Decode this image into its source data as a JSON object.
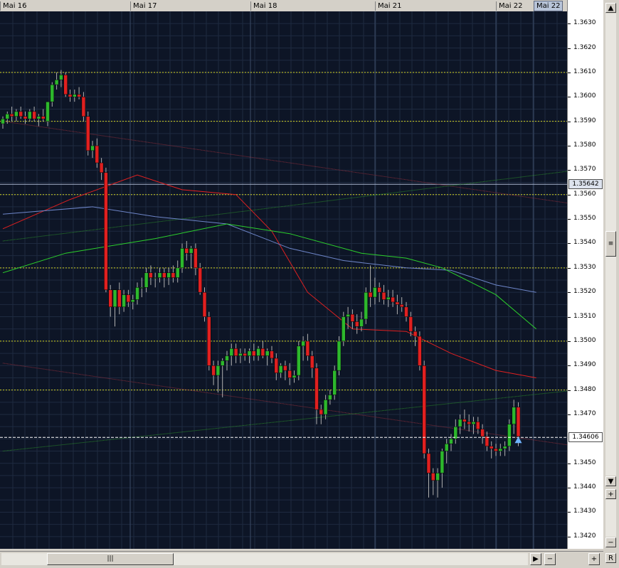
{
  "window": {
    "date_tabs": [
      "Mai 16",
      "Mai 17",
      "Mai 18",
      "Mai 21",
      "Mai 22",
      "Mai 22"
    ]
  },
  "colors": {
    "background": "#0d1526",
    "grid": "#1e2a40",
    "bull": "#2db82d",
    "bear": "#e02020",
    "ma_red": "#e02020",
    "ma_blue": "#6d85c8",
    "ma_green": "#2cd02c",
    "channel_red": "#8b2d3a",
    "channel_green": "#2a8a2a",
    "level": "#d4d420",
    "current_price": "#ffffff",
    "ref_price_line": "#a8b4cc"
  },
  "chart_data": {
    "type": "candlestick",
    "instrument": "",
    "x_labels": [
      "Mai 16",
      "Mai 17",
      "Mai 18",
      "Mai 21",
      "Mai 22",
      "Mai 22"
    ],
    "ylim": [
      1.3415,
      1.3635
    ],
    "y_ticks": [
      "1.3630",
      "1.3620",
      "1.3610",
      "1.3600",
      "1.3590",
      "1.3580",
      "1.3570",
      "1.3560",
      "1.3550",
      "1.3540",
      "1.3530",
      "1.3520",
      "1.3510",
      "1.3500",
      "1.3490",
      "1.3480",
      "1.3470",
      "1.3450",
      "1.3440",
      "1.3430",
      "1.3420"
    ],
    "current_price": "1.34606",
    "ref_price": "1.35642",
    "horizontal_levels": [
      1.361,
      1.359,
      1.356,
      1.353,
      1.35,
      1.348
    ],
    "candles": [
      [
        1.3589,
        1.3592,
        1.3587,
        1.3591
      ],
      [
        1.3591,
        1.3594,
        1.3589,
        1.3593
      ],
      [
        1.3593,
        1.3596,
        1.359,
        1.3592
      ],
      [
        1.3592,
        1.3595,
        1.359,
        1.3594
      ],
      [
        1.3594,
        1.3596,
        1.3591,
        1.3592
      ],
      [
        1.3592,
        1.3594,
        1.3589,
        1.3591
      ],
      [
        1.3591,
        1.3595,
        1.359,
        1.3594
      ],
      [
        1.3594,
        1.3596,
        1.359,
        1.3591
      ],
      [
        1.3591,
        1.3593,
        1.3588,
        1.3592
      ],
      [
        1.3592,
        1.3595,
        1.359,
        1.3591
      ],
      [
        1.359,
        1.3596,
        1.3588,
        1.3598
      ],
      [
        1.3598,
        1.3606,
        1.3596,
        1.3605
      ],
      [
        1.3605,
        1.361,
        1.3603,
        1.3607
      ],
      [
        1.3607,
        1.3611,
        1.3604,
        1.3609
      ],
      [
        1.3609,
        1.361,
        1.36,
        1.3601
      ],
      [
        1.3601,
        1.3603,
        1.3598,
        1.36
      ],
      [
        1.36,
        1.3603,
        1.3598,
        1.3601
      ],
      [
        1.3601,
        1.3604,
        1.3599,
        1.36
      ],
      [
        1.36,
        1.3602,
        1.359,
        1.3592
      ],
      [
        1.3592,
        1.3594,
        1.3576,
        1.3578
      ],
      [
        1.3578,
        1.3582,
        1.3575,
        1.358
      ],
      [
        1.358,
        1.3583,
        1.3571,
        1.3573
      ],
      [
        1.3573,
        1.3575,
        1.3566,
        1.3569
      ],
      [
        1.3569,
        1.3571,
        1.352,
        1.3521
      ],
      [
        1.3521,
        1.3523,
        1.351,
        1.3514
      ],
      [
        1.3514,
        1.352,
        1.3506,
        1.3521
      ],
      [
        1.3521,
        1.3524,
        1.3511,
        1.3514
      ],
      [
        1.3514,
        1.3521,
        1.3512,
        1.3519
      ],
      [
        1.3519,
        1.3521,
        1.3514,
        1.3516
      ],
      [
        1.3516,
        1.3519,
        1.3513,
        1.3517
      ],
      [
        1.3517,
        1.3524,
        1.3515,
        1.3522
      ],
      [
        1.3522,
        1.3526,
        1.3518,
        1.3522
      ],
      [
        1.3522,
        1.353,
        1.352,
        1.3528
      ],
      [
        1.3528,
        1.3531,
        1.3523,
        1.3526
      ],
      [
        1.3526,
        1.3528,
        1.3522,
        1.3526
      ],
      [
        1.3526,
        1.353,
        1.3524,
        1.3528
      ],
      [
        1.3528,
        1.353,
        1.3522,
        1.3526
      ],
      [
        1.3526,
        1.353,
        1.3523,
        1.3528
      ],
      [
        1.3528,
        1.3531,
        1.3524,
        1.3526
      ],
      [
        1.3526,
        1.3533,
        1.3524,
        1.353
      ],
      [
        1.353,
        1.354,
        1.3528,
        1.3538
      ],
      [
        1.3538,
        1.3541,
        1.3533,
        1.3536
      ],
      [
        1.3536,
        1.3539,
        1.353,
        1.3538
      ],
      [
        1.3538,
        1.354,
        1.3527,
        1.353
      ],
      [
        1.353,
        1.3532,
        1.3519,
        1.352
      ],
      [
        1.352,
        1.3522,
        1.3508,
        1.351
      ],
      [
        1.351,
        1.3512,
        1.3488,
        1.349
      ],
      [
        1.349,
        1.3492,
        1.3482,
        1.3486
      ],
      [
        1.3486,
        1.3492,
        1.3479,
        1.349
      ],
      [
        1.349,
        1.3493,
        1.3477,
        1.3492
      ],
      [
        1.3492,
        1.3496,
        1.3488,
        1.3494
      ],
      [
        1.3494,
        1.3499,
        1.349,
        1.3497
      ],
      [
        1.3497,
        1.3499,
        1.3491,
        1.3494
      ],
      [
        1.3494,
        1.3497,
        1.3491,
        1.3495
      ],
      [
        1.3495,
        1.3497,
        1.3492,
        1.3494
      ],
      [
        1.3494,
        1.3497,
        1.3491,
        1.3496
      ],
      [
        1.3496,
        1.3499,
        1.3492,
        1.3494
      ],
      [
        1.3494,
        1.3498,
        1.3492,
        1.3497
      ],
      [
        1.3497,
        1.35,
        1.3493,
        1.3494
      ],
      [
        1.3494,
        1.3497,
        1.349,
        1.3496
      ],
      [
        1.3496,
        1.3498,
        1.3491,
        1.3493
      ],
      [
        1.3493,
        1.3495,
        1.3484,
        1.3487
      ],
      [
        1.3487,
        1.3491,
        1.3485,
        1.349
      ],
      [
        1.349,
        1.3492,
        1.3484,
        1.3488
      ],
      [
        1.3488,
        1.3491,
        1.3482,
        1.3485
      ],
      [
        1.3485,
        1.3488,
        1.3483,
        1.3486
      ],
      [
        1.3486,
        1.35,
        1.3484,
        1.3498
      ],
      [
        1.3498,
        1.3502,
        1.3492,
        1.35
      ],
      [
        1.35,
        1.3503,
        1.3492,
        1.3494
      ],
      [
        1.3494,
        1.3496,
        1.3485,
        1.3489
      ],
      [
        1.3489,
        1.3491,
        1.3466,
        1.3472
      ],
      [
        1.3472,
        1.3474,
        1.3466,
        1.347
      ],
      [
        1.347,
        1.3478,
        1.3468,
        1.3476
      ],
      [
        1.3476,
        1.348,
        1.3474,
        1.3478
      ],
      [
        1.3478,
        1.349,
        1.3476,
        1.3488
      ],
      [
        1.3488,
        1.3502,
        1.3486,
        1.35
      ],
      [
        1.35,
        1.3512,
        1.3498,
        1.351
      ],
      [
        1.351,
        1.3514,
        1.3505,
        1.3511
      ],
      [
        1.3511,
        1.3513,
        1.3505,
        1.3508
      ],
      [
        1.3508,
        1.3511,
        1.3503,
        1.3506
      ],
      [
        1.3506,
        1.3512,
        1.3504,
        1.3509
      ],
      [
        1.3509,
        1.3522,
        1.3507,
        1.352
      ],
      [
        1.352,
        1.3531,
        1.3514,
        1.3518
      ],
      [
        1.3518,
        1.3526,
        1.3515,
        1.3522
      ],
      [
        1.3522,
        1.3524,
        1.3516,
        1.352
      ],
      [
        1.352,
        1.3523,
        1.3515,
        1.3517
      ],
      [
        1.3517,
        1.3521,
        1.3514,
        1.3518
      ],
      [
        1.3518,
        1.3521,
        1.3514,
        1.3516
      ],
      [
        1.3516,
        1.3519,
        1.3511,
        1.3515
      ],
      [
        1.3515,
        1.3518,
        1.3512,
        1.3514
      ],
      [
        1.3514,
        1.3516,
        1.3508,
        1.351
      ],
      [
        1.351,
        1.3512,
        1.3502,
        1.3504
      ],
      [
        1.3504,
        1.3506,
        1.3498,
        1.3502
      ],
      [
        1.3502,
        1.3504,
        1.3488,
        1.349
      ],
      [
        1.349,
        1.3492,
        1.3452,
        1.3454
      ],
      [
        1.3454,
        1.3456,
        1.3436,
        1.3446
      ],
      [
        1.3446,
        1.3448,
        1.3437,
        1.3443
      ],
      [
        1.3443,
        1.3448,
        1.3436,
        1.3446
      ],
      [
        1.3446,
        1.3456,
        1.344,
        1.3455
      ],
      [
        1.3455,
        1.346,
        1.345,
        1.3458
      ],
      [
        1.3458,
        1.3462,
        1.3455,
        1.346
      ],
      [
        1.346,
        1.3468,
        1.3458,
        1.3465
      ],
      [
        1.3465,
        1.347,
        1.3462,
        1.3468
      ],
      [
        1.3468,
        1.3472,
        1.3464,
        1.3467
      ],
      [
        1.3467,
        1.347,
        1.3463,
        1.3466
      ],
      [
        1.3466,
        1.3469,
        1.3462,
        1.3467
      ],
      [
        1.3467,
        1.3469,
        1.3462,
        1.3464
      ],
      [
        1.3464,
        1.3466,
        1.3458,
        1.3461
      ],
      [
        1.3461,
        1.3463,
        1.3455,
        1.3457
      ],
      [
        1.3457,
        1.3459,
        1.3452,
        1.3456
      ],
      [
        1.3456,
        1.3458,
        1.3453,
        1.3455
      ],
      [
        1.3455,
        1.3458,
        1.3453,
        1.3456
      ],
      [
        1.3456,
        1.3459,
        1.3453,
        1.3457
      ],
      [
        1.3457,
        1.3468,
        1.3455,
        1.3466
      ],
      [
        1.3466,
        1.3476,
        1.3462,
        1.3473
      ],
      [
        1.3473,
        1.3475,
        1.3457,
        1.3461
      ]
    ],
    "moving_averages": [
      {
        "color": "ma_red",
        "points": [
          [
            0,
            1.3546
          ],
          [
            15,
            1.3558
          ],
          [
            30,
            1.3568
          ],
          [
            40,
            1.3562
          ],
          [
            52,
            1.356
          ],
          [
            60,
            1.3545
          ],
          [
            68,
            1.352
          ],
          [
            78,
            1.3505
          ],
          [
            90,
            1.3504
          ],
          [
            100,
            1.3495
          ],
          [
            110,
            1.3488
          ],
          [
            119,
            1.3485
          ]
        ]
      },
      {
        "color": "ma_blue",
        "points": [
          [
            0,
            1.3552
          ],
          [
            20,
            1.3555
          ],
          [
            34,
            1.3551
          ],
          [
            50,
            1.3548
          ],
          [
            64,
            1.3538
          ],
          [
            76,
            1.3533
          ],
          [
            90,
            1.353
          ],
          [
            100,
            1.3529
          ],
          [
            110,
            1.3523
          ],
          [
            119,
            1.352
          ]
        ]
      },
      {
        "color": "ma_green",
        "points": [
          [
            0,
            1.3528
          ],
          [
            14,
            1.3536
          ],
          [
            34,
            1.3542
          ],
          [
            50,
            1.3548
          ],
          [
            64,
            1.3544
          ],
          [
            80,
            1.3536
          ],
          [
            90,
            1.3534
          ],
          [
            98,
            1.353
          ],
          [
            110,
            1.3519
          ],
          [
            119,
            1.3505
          ]
        ]
      }
    ],
    "trend_lines": [
      {
        "color": "channel_red",
        "from": [
          0,
          1.359
        ],
        "to": [
          128,
          1.3556
        ]
      },
      {
        "color": "channel_red",
        "from": [
          0,
          1.3491
        ],
        "to": [
          128,
          1.3457
        ]
      },
      {
        "color": "channel_green",
        "from": [
          0,
          1.3541
        ],
        "to": [
          128,
          1.357
        ]
      },
      {
        "color": "channel_green",
        "from": [
          0,
          1.3455
        ],
        "to": [
          128,
          1.348
        ]
      }
    ]
  }
}
